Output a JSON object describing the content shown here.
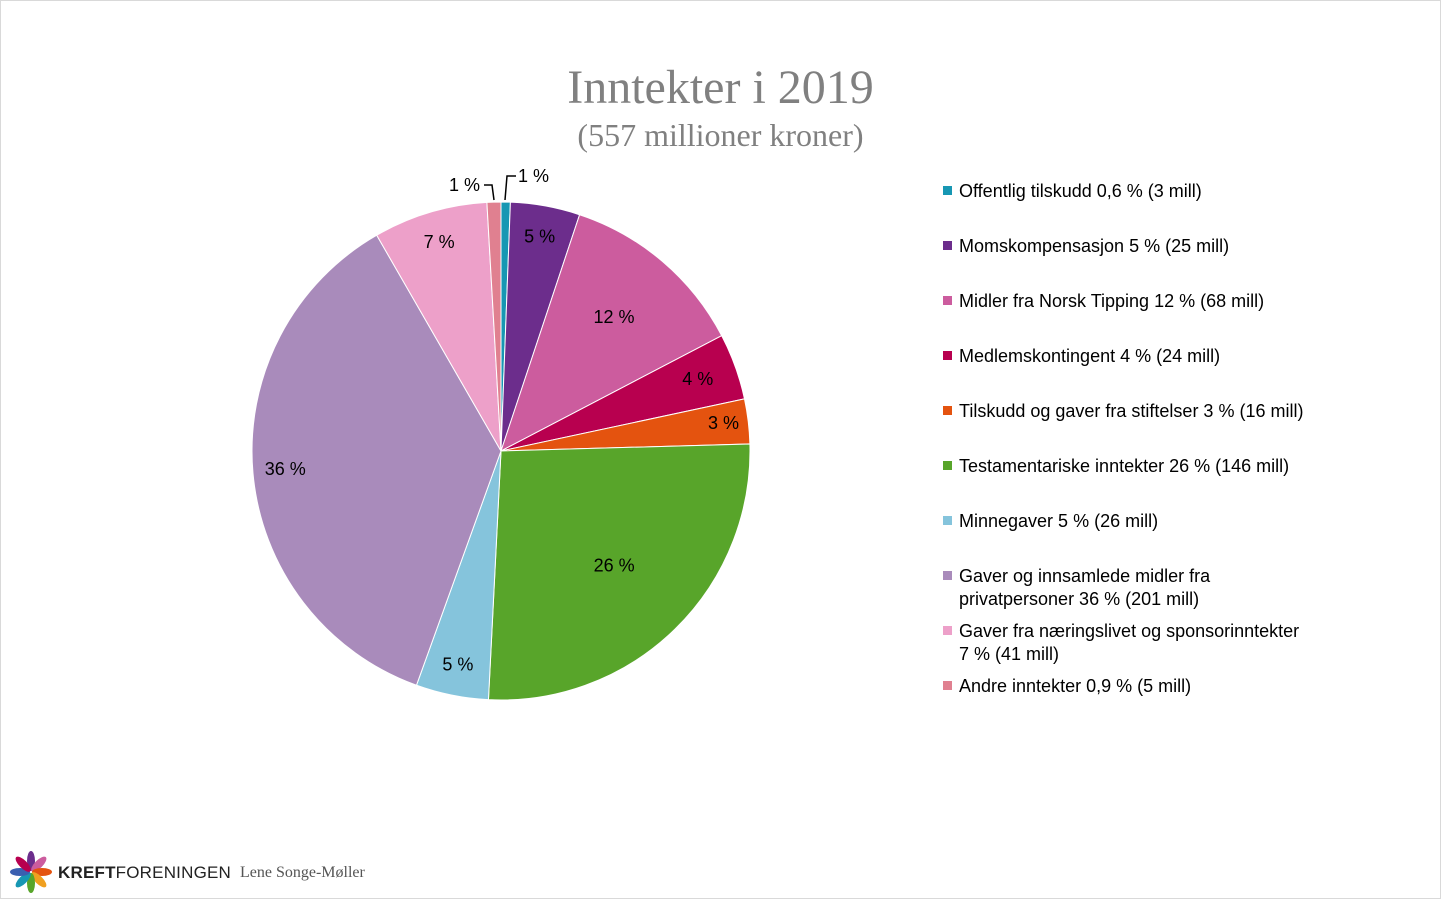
{
  "chart_data": {
    "type": "pie",
    "title": "Inntekter i 2019",
    "subtitle": "(557 millioner kroner)",
    "slices": [
      {
        "name": "Offentlig tilskudd 0,6 % (3 mill)",
        "value": 0.6,
        "label": "1 %",
        "color": "#1797b3"
      },
      {
        "name": "Momskompensasjon 5 % (25 mill)",
        "value": 4.5,
        "label": "5 %",
        "color": "#6c2d8c"
      },
      {
        "name": "Midler fra Norsk Tipping 12 %  (68 mill)",
        "value": 12.2,
        "label": "12 %",
        "color": "#cc5c9e"
      },
      {
        "name": "Medlemskontingent 4 % (24 mill)",
        "value": 4.3,
        "label": "4 %",
        "color": "#b8004f"
      },
      {
        "name": "Tilskudd og gaver fra stiftelser 3 % (16 mill)",
        "value": 2.9,
        "label": "3 %",
        "color": "#e4530f"
      },
      {
        "name": "Testamentariske inntekter 26 % (146 mill)",
        "value": 26.2,
        "label": "26 %",
        "color": "#58a52a"
      },
      {
        "name": "Minnegaver 5 % (26 mill)",
        "value": 4.7,
        "label": "5 %",
        "color": "#85c4dc"
      },
      {
        "name": "Gaver og innsamlede midler fra privatpersoner 36 % (201 mill)",
        "value": 36.1,
        "label": "36 %",
        "color": "#a98bbb"
      },
      {
        "name": "Gaver fra næringslivet og sponsorinntekter 7 % (41 mill)",
        "value": 7.4,
        "label": "7 %",
        "color": "#eda0c9"
      },
      {
        "name": "Andre inntekter 0,9 % (5 mill)",
        "value": 0.9,
        "label": "1 %",
        "color": "#e08090"
      }
    ],
    "legend_position": "right"
  },
  "footer": {
    "brand_bold": "KREFT",
    "brand_rest": "FORENINGEN",
    "author": "Lene Songe-Møller"
  }
}
